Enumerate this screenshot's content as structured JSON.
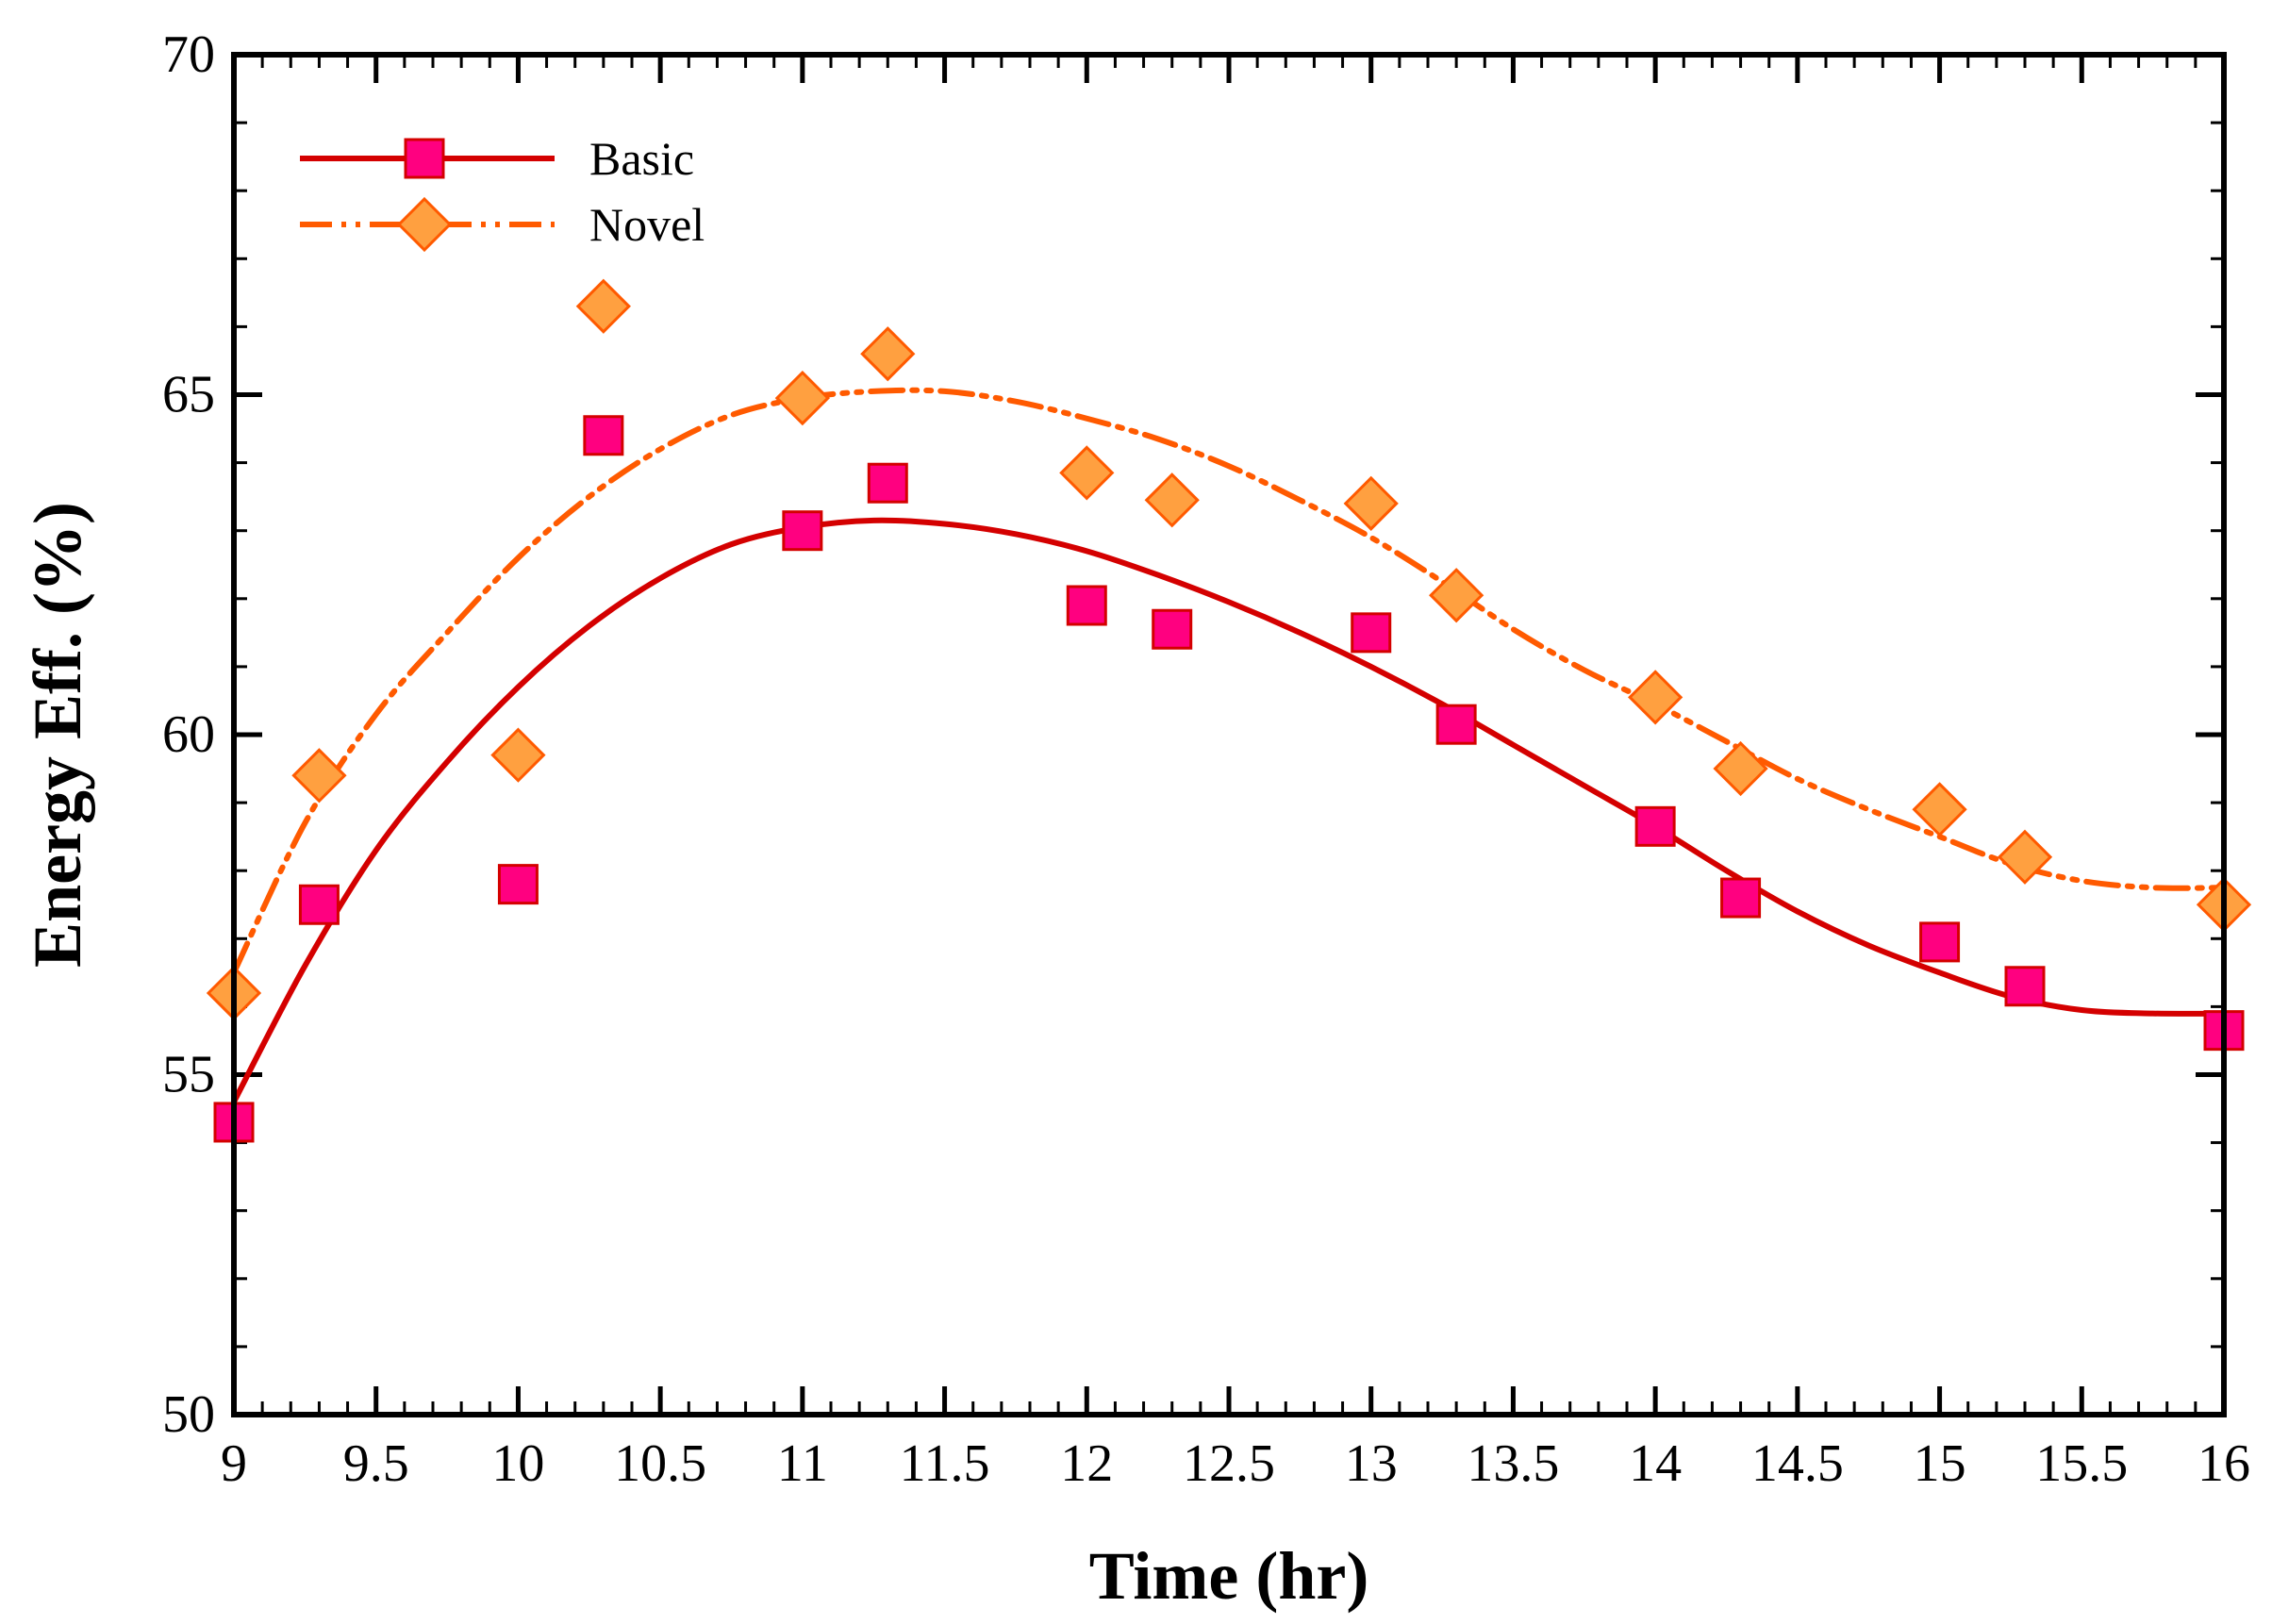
{
  "chart_data": {
    "type": "line",
    "title": "",
    "xlabel": "Time (hr)",
    "ylabel": "Energy Eff. (%)",
    "xlim": [
      9,
      16
    ],
    "ylim": [
      50,
      70
    ],
    "x_ticks": [
      9,
      9.5,
      10,
      10.5,
      11,
      11.5,
      12,
      12.5,
      13,
      13.5,
      14,
      14.5,
      15,
      15.5,
      16
    ],
    "x_tick_labels": [
      "9",
      "9.5",
      "10",
      "10.5",
      "11",
      "11.5",
      "12",
      "12.5",
      "13",
      "13.5",
      "14",
      "14.5",
      "15",
      "15.5",
      "16"
    ],
    "y_ticks": [
      50,
      55,
      60,
      65,
      70
    ],
    "y_tick_labels": [
      "50",
      "55",
      "60",
      "65",
      "70"
    ],
    "x_minor_step": 0.1,
    "y_minor_step": 1,
    "grid": false,
    "legend_position": "top-left",
    "series": [
      {
        "name": "Basic",
        "marker": "square",
        "line_style": "solid",
        "line_color": "#d40000",
        "marker_color": "#ff0080",
        "marker_edge_color": "#d40000",
        "points": {
          "x": [
            9.0,
            9.3,
            10.0,
            10.3,
            11.0,
            11.3,
            12.0,
            12.3,
            13.0,
            13.3,
            14.0,
            14.3,
            15.0,
            15.3,
            16.0
          ],
          "y": [
            54.3,
            57.5,
            57.8,
            64.4,
            63.0,
            63.7,
            61.9,
            61.55,
            61.5,
            60.15,
            58.65,
            57.6,
            56.95,
            56.3,
            55.65
          ]
        },
        "fit_curve": {
          "x": [
            9.0,
            9.25,
            9.5,
            9.75,
            10.0,
            10.25,
            10.5,
            10.75,
            11.0,
            11.25,
            11.5,
            11.75,
            12.0,
            12.25,
            12.5,
            12.75,
            13.0,
            13.25,
            13.5,
            13.75,
            14.0,
            14.25,
            14.5,
            14.75,
            15.0,
            15.25,
            15.5,
            15.75,
            16.0
          ],
          "y": [
            54.6,
            56.6,
            58.3,
            59.6,
            60.7,
            61.6,
            62.3,
            62.8,
            63.05,
            63.15,
            63.1,
            62.95,
            62.7,
            62.35,
            61.95,
            61.5,
            61.0,
            60.45,
            59.85,
            59.25,
            58.65,
            58.0,
            57.4,
            56.9,
            56.5,
            56.15,
            55.95,
            55.9,
            55.9
          ]
        }
      },
      {
        "name": "Novel",
        "marker": "diamond",
        "line_style": "dash-dot-dot",
        "line_color": "#ff5a00",
        "marker_color": "#ffa040",
        "marker_edge_color": "#ff5a00",
        "points": {
          "x": [
            9.0,
            9.3,
            10.0,
            10.3,
            11.0,
            11.3,
            12.0,
            12.3,
            13.0,
            13.3,
            14.0,
            14.3,
            15.0,
            15.3,
            16.0
          ],
          "y": [
            56.2,
            59.4,
            59.7,
            66.3,
            64.95,
            65.6,
            63.85,
            63.45,
            63.4,
            62.05,
            60.55,
            59.5,
            58.9,
            58.2,
            57.5
          ]
        },
        "fit_curve": {
          "x": [
            9.0,
            9.25,
            9.5,
            9.75,
            10.0,
            10.25,
            10.5,
            10.75,
            11.0,
            11.25,
            11.5,
            11.75,
            12.0,
            12.25,
            12.5,
            12.75,
            13.0,
            13.25,
            13.5,
            13.75,
            14.0,
            14.25,
            14.5,
            14.75,
            15.0,
            15.25,
            15.5,
            15.75,
            16.0
          ],
          "y": [
            56.5,
            58.7,
            60.3,
            61.5,
            62.6,
            63.5,
            64.2,
            64.7,
            64.95,
            65.05,
            65.05,
            64.9,
            64.65,
            64.35,
            63.95,
            63.45,
            62.9,
            62.25,
            61.55,
            60.95,
            60.45,
            59.9,
            59.35,
            58.9,
            58.5,
            58.1,
            57.85,
            57.75,
            57.75
          ]
        }
      }
    ]
  }
}
